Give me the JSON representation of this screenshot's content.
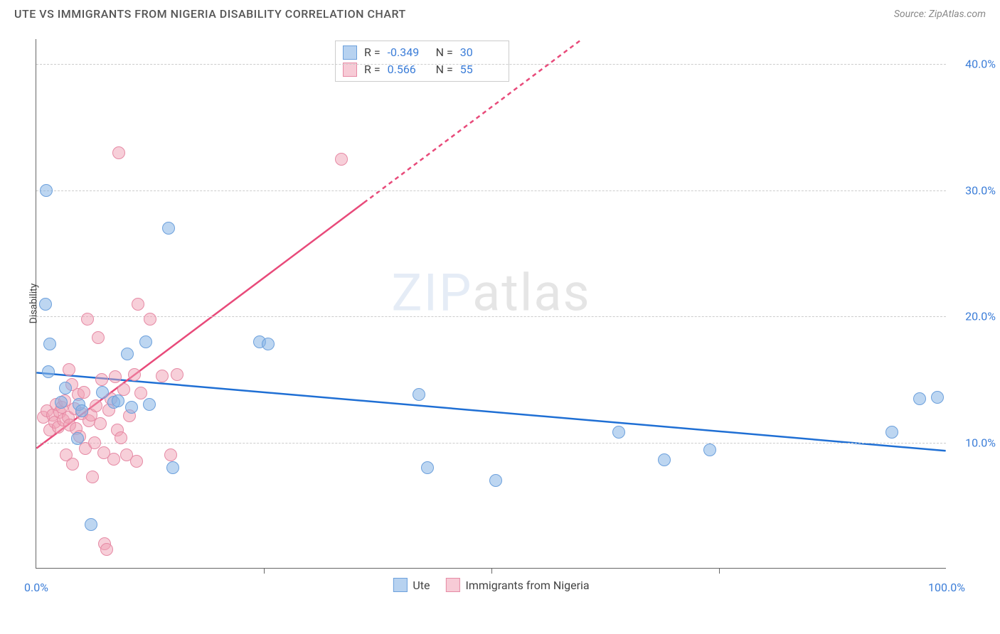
{
  "title": "UTE VS IMMIGRANTS FROM NIGERIA DISABILITY CORRELATION CHART",
  "source": "Source: ZipAtlas.com",
  "watermark": {
    "zip": "ZIP",
    "atlas": "atlas"
  },
  "y_axis_title": "Disability",
  "chart": {
    "type": "scatter",
    "xlim": [
      0,
      100
    ],
    "ylim": [
      0,
      42
    ],
    "x_ticks_minor": [
      25,
      50,
      75
    ],
    "x_ticks_labeled": [
      {
        "v": 0,
        "label": "0.0%"
      },
      {
        "v": 100,
        "label": "100.0%"
      }
    ],
    "y_ticks": [
      {
        "v": 10,
        "label": "10.0%"
      },
      {
        "v": 20,
        "label": "20.0%"
      },
      {
        "v": 30,
        "label": "30.0%"
      },
      {
        "v": 40,
        "label": "40.0%"
      }
    ],
    "grid_color": "#cccccc",
    "background_color": "#ffffff",
    "marker_radius": 9
  },
  "series": {
    "blue": {
      "label": "Ute",
      "color_fill": "rgba(135,180,230,0.55)",
      "color_stroke": "#6ca0dc",
      "trend_color": "#1f6fd4",
      "R": "-0.349",
      "N": "30",
      "trend": {
        "x1": 0,
        "y1": 15.5,
        "x2": 100,
        "y2": 9.3,
        "dashed_from_x": null
      },
      "points": [
        [
          1.1,
          30.0
        ],
        [
          1.0,
          21.0
        ],
        [
          1.5,
          17.8
        ],
        [
          1.3,
          15.6
        ],
        [
          3.2,
          14.3
        ],
        [
          4.7,
          13.0
        ],
        [
          5.0,
          12.5
        ],
        [
          7.3,
          14.0
        ],
        [
          8.5,
          13.2
        ],
        [
          10.0,
          17.0
        ],
        [
          10.5,
          12.8
        ],
        [
          12.0,
          18.0
        ],
        [
          12.4,
          13.0
        ],
        [
          14.5,
          27.0
        ],
        [
          15.0,
          8.0
        ],
        [
          24.5,
          18.0
        ],
        [
          25.5,
          17.8
        ],
        [
          42.0,
          13.8
        ],
        [
          43.0,
          8.0
        ],
        [
          50.5,
          7.0
        ],
        [
          64.0,
          10.8
        ],
        [
          69.0,
          8.6
        ],
        [
          74.0,
          9.4
        ],
        [
          94.0,
          10.8
        ],
        [
          97.0,
          13.5
        ],
        [
          99.0,
          13.6
        ],
        [
          6.0,
          3.5
        ],
        [
          4.5,
          10.3
        ],
        [
          2.7,
          13.2
        ],
        [
          9.0,
          13.3
        ]
      ]
    },
    "pink": {
      "label": "Immigrants from Nigeria",
      "color_fill": "rgba(240,160,180,0.5)",
      "color_stroke": "#e68aa5",
      "trend_color": "#e84a7a",
      "R": "0.566",
      "N": "55",
      "trend": {
        "x1": 0,
        "y1": 9.5,
        "x2": 60,
        "y2": 42,
        "dashed_from_x": 36
      },
      "points": [
        [
          0.8,
          12.0
        ],
        [
          1.2,
          12.5
        ],
        [
          1.5,
          11.0
        ],
        [
          1.8,
          12.2
        ],
        [
          2.0,
          11.6
        ],
        [
          2.2,
          13.0
        ],
        [
          2.4,
          11.2
        ],
        [
          2.6,
          12.4
        ],
        [
          2.8,
          12.8
        ],
        [
          3.0,
          11.8
        ],
        [
          3.1,
          13.3
        ],
        [
          3.3,
          9.0
        ],
        [
          3.5,
          12.0
        ],
        [
          3.7,
          11.4
        ],
        [
          3.9,
          14.6
        ],
        [
          4.0,
          8.3
        ],
        [
          4.2,
          12.7
        ],
        [
          4.4,
          11.1
        ],
        [
          4.6,
          13.8
        ],
        [
          4.8,
          10.5
        ],
        [
          5.0,
          12.3
        ],
        [
          5.2,
          14.0
        ],
        [
          5.4,
          9.5
        ],
        [
          5.6,
          19.8
        ],
        [
          5.8,
          11.7
        ],
        [
          6.0,
          12.2
        ],
        [
          6.2,
          7.3
        ],
        [
          6.4,
          10.0
        ],
        [
          6.6,
          12.9
        ],
        [
          6.8,
          18.3
        ],
        [
          7.0,
          11.5
        ],
        [
          7.2,
          15.0
        ],
        [
          7.4,
          9.2
        ],
        [
          7.5,
          2.0
        ],
        [
          7.7,
          1.5
        ],
        [
          8.0,
          12.6
        ],
        [
          8.2,
          13.5
        ],
        [
          8.5,
          8.7
        ],
        [
          8.7,
          15.2
        ],
        [
          8.9,
          11.0
        ],
        [
          9.1,
          33.0
        ],
        [
          9.3,
          10.4
        ],
        [
          9.6,
          14.2
        ],
        [
          9.9,
          9.0
        ],
        [
          10.2,
          12.1
        ],
        [
          10.8,
          15.4
        ],
        [
          11.0,
          8.5
        ],
        [
          11.2,
          21.0
        ],
        [
          11.5,
          13.9
        ],
        [
          12.5,
          19.8
        ],
        [
          13.8,
          15.3
        ],
        [
          14.8,
          9.0
        ],
        [
          15.5,
          15.4
        ],
        [
          33.5,
          32.5
        ],
        [
          3.6,
          15.8
        ]
      ]
    }
  },
  "legend_top": {
    "R_label": "R =",
    "N_label": "N ="
  },
  "legend_bottom": [
    {
      "series": "blue"
    },
    {
      "series": "pink"
    }
  ]
}
